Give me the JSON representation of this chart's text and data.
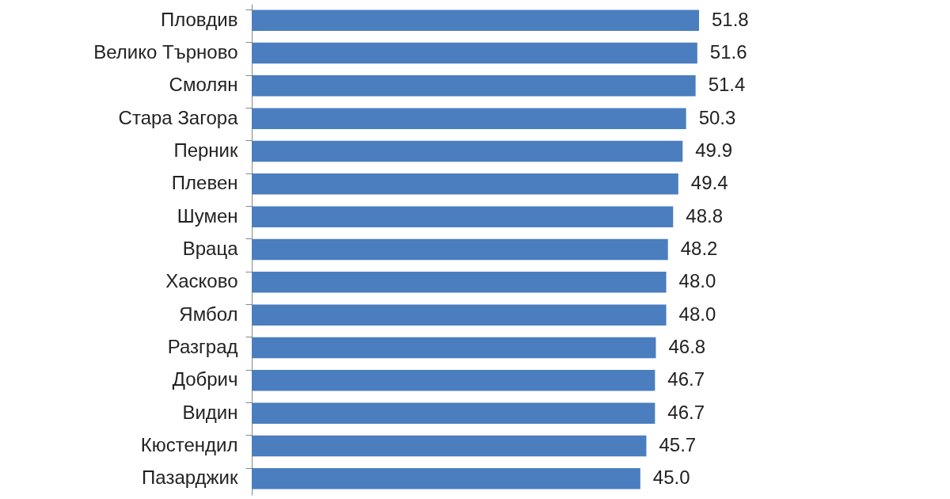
{
  "chart_data": {
    "type": "bar",
    "orientation": "horizontal",
    "categories": [
      "Пловдив",
      "Велико Търново",
      "Смолян",
      "Стара Загора",
      "Перник",
      "Плевен",
      "Шумен",
      "Враца",
      "Хасково",
      "Ямбол",
      "Разград",
      "Добрич",
      "Видин",
      "Кюстендил",
      "Пазарджик"
    ],
    "values": [
      51.8,
      51.6,
      51.4,
      50.3,
      49.9,
      49.4,
      48.8,
      48.2,
      48.0,
      48.0,
      46.8,
      46.7,
      46.7,
      45.7,
      45.0
    ],
    "value_labels": [
      "51.8",
      "51.6",
      "51.4",
      "50.3",
      "49.9",
      "49.4",
      "48.8",
      "48.2",
      "48.0",
      "48.0",
      "46.8",
      "46.7",
      "46.7",
      "45.7",
      "45.0"
    ],
    "color": "#4a7ebf"
  }
}
